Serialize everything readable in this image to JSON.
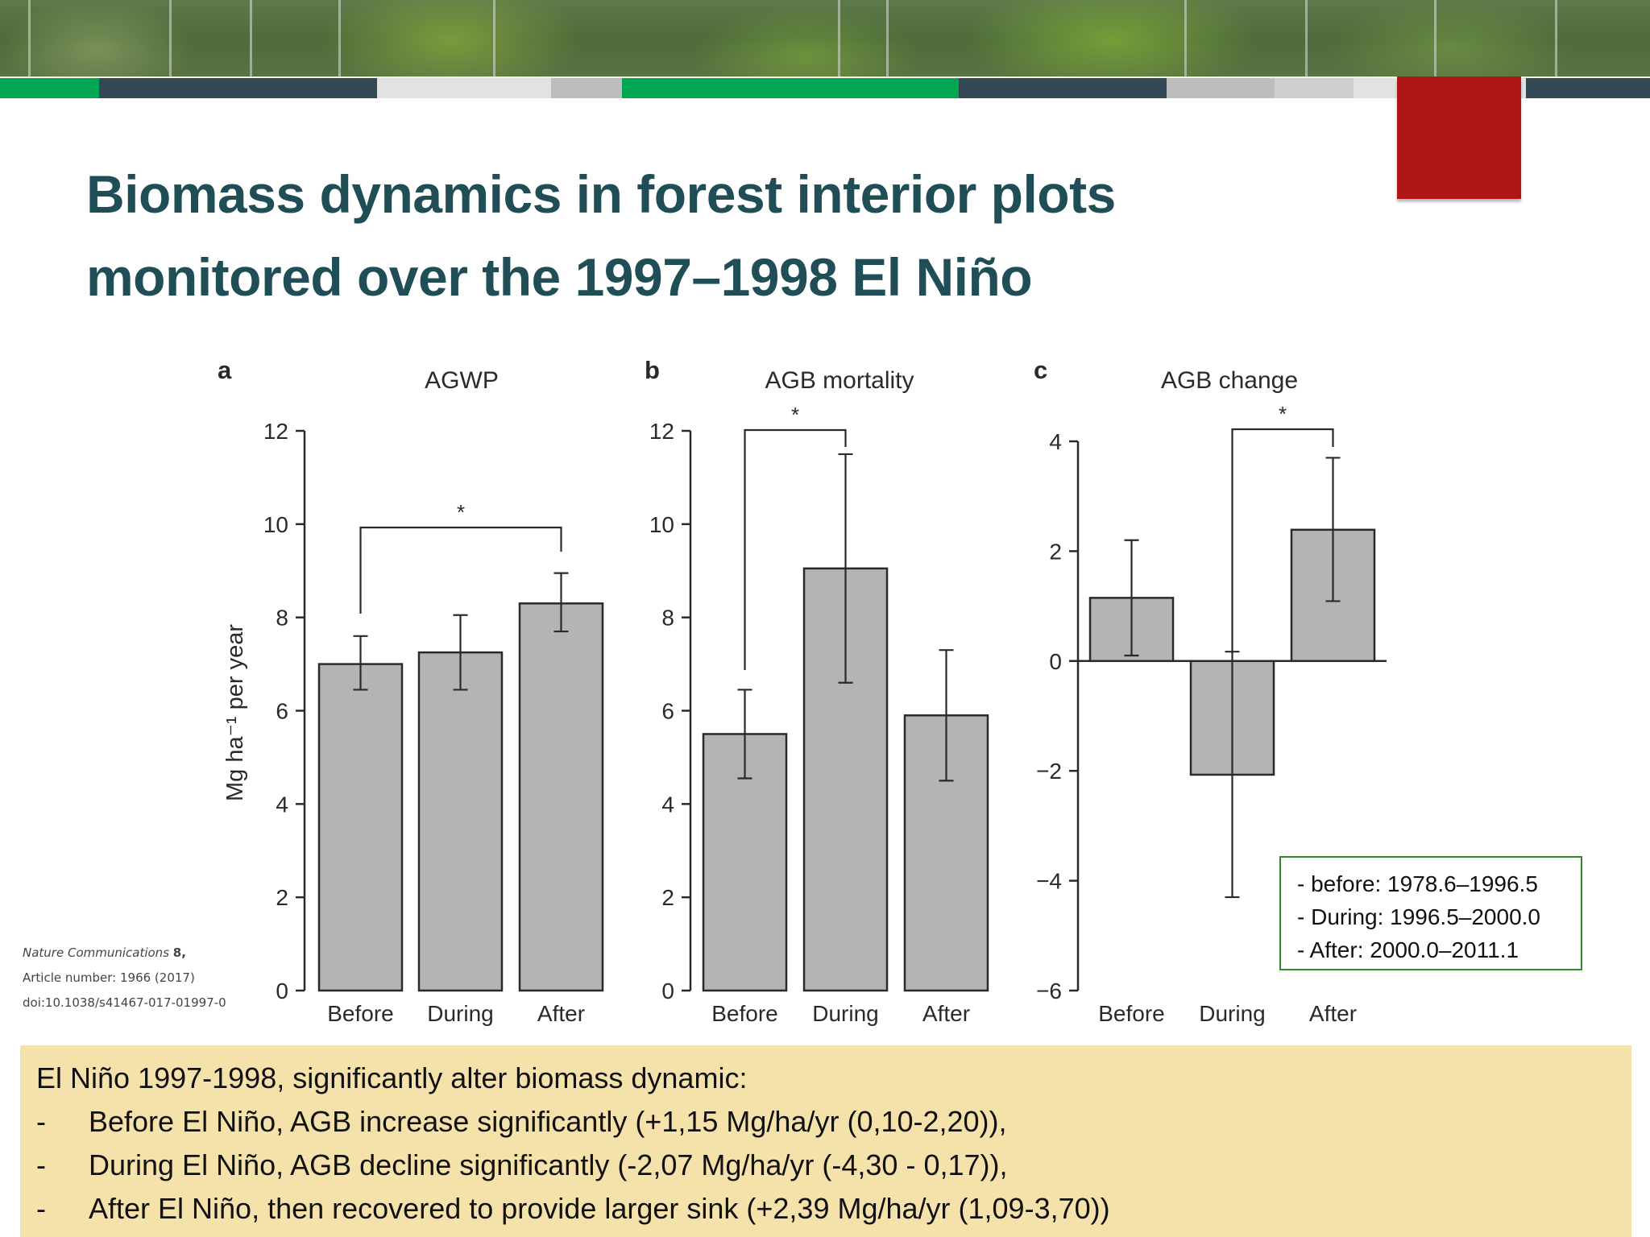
{
  "slide": {
    "title_line1": "Biomass dynamics in forest interior plots",
    "title_line2": "monitored over the 1997–1998 El Niño",
    "colors": {
      "title": "#1f4e56",
      "accent_green": "#00a651",
      "accent_slate": "#324955",
      "accent_red": "#b01518",
      "bar_fill": "#b4b4b6",
      "summary_bg": "#f5e2ab",
      "callout_border": "#2e8b2e"
    }
  },
  "citation": {
    "journal": "Nature Communications",
    "volume": "8,",
    "article": "Article number: 1966 (2017)",
    "doi": "doi:10.1038/s41467-017-01997-0"
  },
  "period_box": {
    "lines": [
      "- before: 1978.6–1996.5",
      "- During: 1996.5–2000.0",
      "- After: 2000.0–2011.1"
    ]
  },
  "summary": {
    "intro": "El Niño 1997-1998, significantly  alter biomass dynamic:",
    "bullets": [
      {
        "dash": "-",
        "text": "Before El Niño, AGB increase significantly (+1,15 Mg/ha/yr (0,10-2,20)),"
      },
      {
        "dash": "-",
        "text": "During El Niño, AGB decline significantly (-2,07 Mg/ha/yr (-4,30 - 0,17)),"
      },
      {
        "dash": "-",
        "text": "After El Niño, then recovered to provide larger sink (+2,39 Mg/ha/yr (1,09-3,70))"
      }
    ]
  },
  "chart_data": [
    {
      "type": "bar",
      "panel": "a",
      "title": "AGWP",
      "xlabel": "",
      "ylabel": "Mg ha⁻¹ per year",
      "categories": [
        "Before",
        "During",
        "After"
      ],
      "values": [
        7.0,
        7.25,
        8.3
      ],
      "error_low": [
        6.45,
        6.45,
        7.7
      ],
      "error_high": [
        7.6,
        8.05,
        8.95
      ],
      "ylim": [
        0,
        12
      ],
      "yticks": [
        0,
        2,
        4,
        6,
        8,
        10,
        12
      ],
      "significance": {
        "from": "Before",
        "to": "After",
        "label": "*"
      },
      "grid": false
    },
    {
      "type": "bar",
      "panel": "b",
      "title": "AGB mortality",
      "xlabel": "",
      "ylabel": "Mg ha⁻¹ per year",
      "categories": [
        "Before",
        "During",
        "After"
      ],
      "values": [
        5.5,
        9.05,
        5.9
      ],
      "error_low": [
        4.55,
        6.6,
        4.5
      ],
      "error_high": [
        6.45,
        11.5,
        7.3
      ],
      "ylim": [
        0,
        12
      ],
      "yticks": [
        0,
        2,
        4,
        6,
        8,
        10,
        12
      ],
      "significance": {
        "from": "Before",
        "to": "During",
        "label": "*"
      },
      "grid": false
    },
    {
      "type": "bar",
      "panel": "c",
      "title": "AGB change",
      "xlabel": "",
      "ylabel": "Mg ha⁻¹ per year",
      "categories": [
        "Before",
        "During",
        "After"
      ],
      "values": [
        1.15,
        -2.07,
        2.39
      ],
      "error_low": [
        0.1,
        -4.3,
        1.09
      ],
      "error_high": [
        2.2,
        0.17,
        3.7
      ],
      "ylim": [
        -6,
        4
      ],
      "yticks": [
        -6,
        -4,
        -2,
        0,
        2,
        4
      ],
      "significance": {
        "from": "During",
        "to": "After",
        "label": "*"
      },
      "grid": false
    }
  ]
}
